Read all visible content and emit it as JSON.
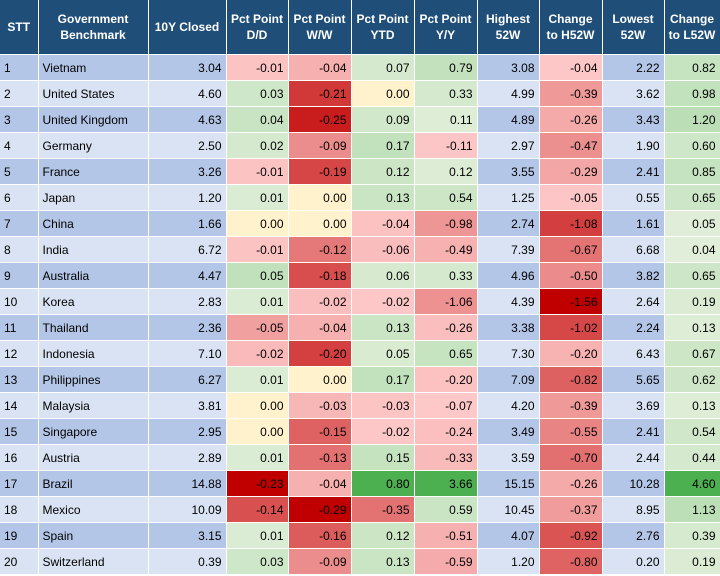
{
  "table": {
    "headers": [
      {
        "key": "stt",
        "label": "STT"
      },
      {
        "key": "benchmark",
        "label": "Government Benchmark"
      },
      {
        "key": "closed",
        "label": "10Y Closed"
      },
      {
        "key": "dd",
        "label": "Pct Point D/D"
      },
      {
        "key": "ww",
        "label": "Pct Point W/W"
      },
      {
        "key": "ytd",
        "label": "Pct Point YTD"
      },
      {
        "key": "yy",
        "label": "Pct Point Y/Y"
      },
      {
        "key": "high",
        "label": "Highest 52W"
      },
      {
        "key": "chh",
        "label": "Change to H52W"
      },
      {
        "key": "low",
        "label": "Lowest 52W"
      },
      {
        "key": "chl",
        "label": "Change to L52W"
      }
    ],
    "rows": [
      {
        "stt": "1",
        "benchmark": "Vietnam",
        "closed": "3.04",
        "dd": "-0.01",
        "ww": "-0.04",
        "ytd": "0.07",
        "yy": "0.79",
        "high": "3.08",
        "chh": "-0.04",
        "low": "2.22",
        "chl": "0.82"
      },
      {
        "stt": "2",
        "benchmark": "United States",
        "closed": "4.60",
        "dd": "0.03",
        "ww": "-0.21",
        "ytd": "0.00",
        "yy": "0.33",
        "high": "4.99",
        "chh": "-0.39",
        "low": "3.62",
        "chl": "0.98"
      },
      {
        "stt": "3",
        "benchmark": "United Kingdom",
        "closed": "4.63",
        "dd": "0.04",
        "ww": "-0.25",
        "ytd": "0.09",
        "yy": "0.11",
        "high": "4.89",
        "chh": "-0.26",
        "low": "3.43",
        "chl": "1.20"
      },
      {
        "stt": "4",
        "benchmark": "Germany",
        "closed": "2.50",
        "dd": "0.02",
        "ww": "-0.09",
        "ytd": "0.17",
        "yy": "-0.11",
        "high": "2.97",
        "chh": "-0.47",
        "low": "1.90",
        "chl": "0.60"
      },
      {
        "stt": "5",
        "benchmark": "France",
        "closed": "3.26",
        "dd": "-0.01",
        "ww": "-0.19",
        "ytd": "0.12",
        "yy": "0.12",
        "high": "3.55",
        "chh": "-0.29",
        "low": "2.41",
        "chl": "0.85"
      },
      {
        "stt": "6",
        "benchmark": "Japan",
        "closed": "1.20",
        "dd": "0.01",
        "ww": "0.00",
        "ytd": "0.13",
        "yy": "0.54",
        "high": "1.25",
        "chh": "-0.05",
        "low": "0.55",
        "chl": "0.65"
      },
      {
        "stt": "7",
        "benchmark": "China",
        "closed": "1.66",
        "dd": "0.00",
        "ww": "0.00",
        "ytd": "-0.04",
        "yy": "-0.98",
        "high": "2.74",
        "chh": "-1.08",
        "low": "1.61",
        "chl": "0.05"
      },
      {
        "stt": "8",
        "benchmark": "India",
        "closed": "6.72",
        "dd": "-0.01",
        "ww": "-0.12",
        "ytd": "-0.06",
        "yy": "-0.49",
        "high": "7.39",
        "chh": "-0.67",
        "low": "6.68",
        "chl": "0.04"
      },
      {
        "stt": "9",
        "benchmark": "Australia",
        "closed": "4.47",
        "dd": "0.05",
        "ww": "-0.18",
        "ytd": "0.06",
        "yy": "0.33",
        "high": "4.96",
        "chh": "-0.50",
        "low": "3.82",
        "chl": "0.65"
      },
      {
        "stt": "10",
        "benchmark": "Korea",
        "closed": "2.83",
        "dd": "0.01",
        "ww": "-0.02",
        "ytd": "-0.02",
        "yy": "-1.06",
        "high": "4.39",
        "chh": "-1.56",
        "low": "2.64",
        "chl": "0.19"
      },
      {
        "stt": "11",
        "benchmark": "Thailand",
        "closed": "2.36",
        "dd": "-0.05",
        "ww": "-0.04",
        "ytd": "0.13",
        "yy": "-0.26",
        "high": "3.38",
        "chh": "-1.02",
        "low": "2.24",
        "chl": "0.13"
      },
      {
        "stt": "12",
        "benchmark": "Indonesia",
        "closed": "7.10",
        "dd": "-0.02",
        "ww": "-0.20",
        "ytd": "0.05",
        "yy": "0.65",
        "high": "7.30",
        "chh": "-0.20",
        "low": "6.43",
        "chl": "0.67"
      },
      {
        "stt": "13",
        "benchmark": "Philippines",
        "closed": "6.27",
        "dd": "0.01",
        "ww": "0.00",
        "ytd": "0.17",
        "yy": "-0.20",
        "high": "7.09",
        "chh": "-0.82",
        "low": "5.65",
        "chl": "0.62"
      },
      {
        "stt": "14",
        "benchmark": "Malaysia",
        "closed": "3.81",
        "dd": "0.00",
        "ww": "-0.03",
        "ytd": "-0.03",
        "yy": "-0.07",
        "high": "4.20",
        "chh": "-0.39",
        "low": "3.69",
        "chl": "0.13"
      },
      {
        "stt": "15",
        "benchmark": "Singapore",
        "closed": "2.95",
        "dd": "0.00",
        "ww": "-0.15",
        "ytd": "-0.02",
        "yy": "-0.24",
        "high": "3.49",
        "chh": "-0.55",
        "low": "2.41",
        "chl": "0.54"
      },
      {
        "stt": "16",
        "benchmark": "Austria",
        "closed": "2.89",
        "dd": "0.01",
        "ww": "-0.13",
        "ytd": "0.15",
        "yy": "-0.33",
        "high": "3.59",
        "chh": "-0.70",
        "low": "2.44",
        "chl": "0.44"
      },
      {
        "stt": "17",
        "benchmark": "Brazil",
        "closed": "14.88",
        "dd": "-0.23",
        "ww": "-0.04",
        "ytd": "0.80",
        "yy": "3.66",
        "high": "15.15",
        "chh": "-0.26",
        "low": "10.28",
        "chl": "4.60"
      },
      {
        "stt": "18",
        "benchmark": "Mexico",
        "closed": "10.09",
        "dd": "-0.14",
        "ww": "-0.29",
        "ytd": "-0.35",
        "yy": "0.59",
        "high": "10.45",
        "chh": "-0.37",
        "low": "8.95",
        "chl": "1.13"
      },
      {
        "stt": "19",
        "benchmark": "Spain",
        "closed": "3.15",
        "dd": "0.01",
        "ww": "-0.16",
        "ytd": "0.12",
        "yy": "-0.51",
        "high": "4.07",
        "chh": "-0.92",
        "low": "2.76",
        "chl": "0.39"
      },
      {
        "stt": "20",
        "benchmark": "Switzerland",
        "closed": "0.39",
        "dd": "0.03",
        "ww": "-0.09",
        "ytd": "0.13",
        "yy": "-0.59",
        "high": "1.20",
        "chh": "-0.80",
        "low": "0.20",
        "chl": "0.19"
      }
    ]
  },
  "chart_data": {
    "type": "table",
    "columns": [
      "STT",
      "Government Benchmark",
      "10Y Closed",
      "Pct Point D/D",
      "Pct Point W/W",
      "Pct Point YTD",
      "Pct Point Y/Y",
      "Highest 52W",
      "Change to H52W",
      "Lowest 52W",
      "Change to L52W"
    ],
    "heatmap_columns": [
      "dd",
      "ww",
      "ytd",
      "yy",
      "chh",
      "chl"
    ]
  },
  "colors": {
    "header_bg": "#1f4e79",
    "row_odd": "#b4c6e7",
    "row_even": "#dae3f3",
    "neutral": "#fff2cc",
    "positive_light": "#e2efda",
    "positive_dark": "#4caf50",
    "negative_light": "#ffcccc",
    "negative_dark": "#c00000"
  }
}
